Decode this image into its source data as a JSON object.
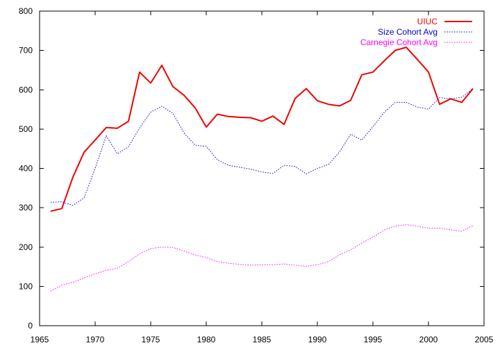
{
  "chart_data": {
    "type": "line",
    "title": "",
    "xlabel": "",
    "ylabel": "",
    "xlim": [
      1965,
      2005
    ],
    "ylim": [
      0,
      800
    ],
    "x_ticks": [
      1965,
      1970,
      1975,
      1980,
      1985,
      1990,
      1995,
      2000,
      2005
    ],
    "y_ticks": [
      0,
      100,
      200,
      300,
      400,
      500,
      600,
      700,
      800
    ],
    "grid": false,
    "legend_position": "top-right",
    "x": [
      1966,
      1967,
      1968,
      1969,
      1970,
      1971,
      1972,
      1973,
      1974,
      1975,
      1976,
      1977,
      1978,
      1979,
      1980,
      1981,
      1982,
      1983,
      1984,
      1985,
      1986,
      1987,
      1988,
      1989,
      1990,
      1991,
      1992,
      1993,
      1994,
      1995,
      1996,
      1997,
      1998,
      1999,
      2000,
      2001,
      2002,
      2003,
      2004
    ],
    "series": [
      {
        "name": "UIUC",
        "color": "#ee0000",
        "style": "solid",
        "values": [
          291,
          298,
          378,
          441,
          472,
          504,
          502,
          520,
          645,
          617,
          662,
          608,
          586,
          554,
          505,
          538,
          532,
          530,
          529,
          520,
          533,
          512,
          578,
          603,
          572,
          563,
          559,
          573,
          638,
          645,
          673,
          700,
          708,
          677,
          645,
          563,
          577,
          568,
          603
        ]
      },
      {
        "name": "Size Cohort Avg",
        "color": "#0000cc",
        "style": "dotted",
        "values": [
          314,
          315,
          306,
          325,
          400,
          483,
          437,
          455,
          503,
          543,
          558,
          540,
          490,
          459,
          456,
          422,
          408,
          403,
          398,
          391,
          387,
          408,
          405,
          386,
          400,
          410,
          442,
          487,
          472,
          506,
          542,
          568,
          568,
          556,
          551,
          580,
          577,
          581,
          603
        ]
      },
      {
        "name": "Carnegie Cohort Avg",
        "color": "#ff00ff",
        "style": "dotted",
        "values": [
          88,
          103,
          110,
          122,
          132,
          141,
          146,
          163,
          183,
          196,
          200,
          199,
          190,
          180,
          173,
          163,
          159,
          156,
          154,
          155,
          155,
          157,
          154,
          151,
          155,
          163,
          180,
          193,
          210,
          225,
          243,
          253,
          257,
          253,
          248,
          248,
          244,
          240,
          255
        ]
      }
    ]
  }
}
